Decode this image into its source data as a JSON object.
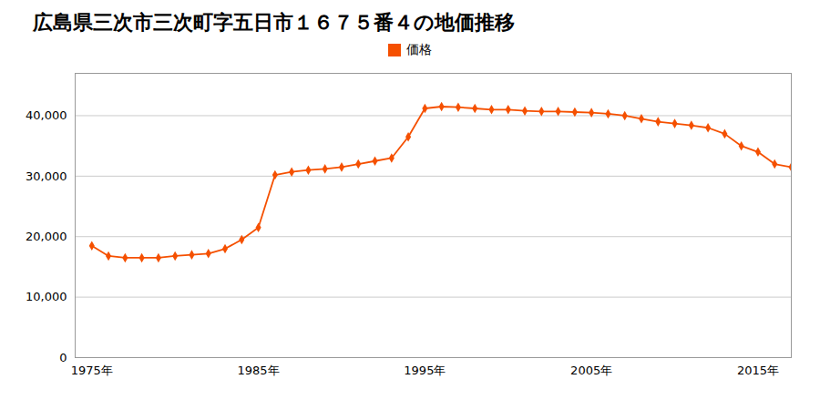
{
  "chart_data": {
    "type": "line",
    "title": "広島県三次市三次町字五日市１６７５番４の地価推移",
    "x": [
      1975,
      1976,
      1977,
      1978,
      1979,
      1980,
      1981,
      1982,
      1983,
      1984,
      1985,
      1986,
      1987,
      1988,
      1989,
      1990,
      1991,
      1992,
      1993,
      1994,
      1995,
      1996,
      1997,
      1998,
      1999,
      2000,
      2001,
      2002,
      2003,
      2004,
      2005,
      2006,
      2007,
      2008,
      2009,
      2010,
      2011,
      2012,
      2013,
      2014,
      2015,
      2016,
      2017
    ],
    "series": [
      {
        "name": "価格",
        "color": "#f55000",
        "marker": "diamond",
        "values": [
          18500,
          16800,
          16500,
          16500,
          16500,
          16800,
          17000,
          17200,
          18000,
          19500,
          21500,
          30200,
          30700,
          31000,
          31200,
          31500,
          32000,
          32500,
          33000,
          36500,
          41200,
          41500,
          41400,
          41200,
          41000,
          41000,
          40800,
          40700,
          40700,
          40600,
          40500,
          40300,
          40000,
          39500,
          39000,
          38700,
          38400,
          38000,
          37000,
          35000,
          34000,
          32000,
          31500
        ]
      }
    ],
    "xlim": [
      1974,
      2017
    ],
    "ylim": [
      0,
      47000
    ],
    "xticks": [
      {
        "value": 1975,
        "label": "1975年"
      },
      {
        "value": 1985,
        "label": "1985年"
      },
      {
        "value": 1995,
        "label": "1995年"
      },
      {
        "value": 2005,
        "label": "2005年"
      },
      {
        "value": 2015,
        "label": "2015年"
      }
    ],
    "yticks": [
      0,
      {
        "value": 10000,
        "label": "10,000"
      },
      {
        "value": 20000,
        "label": "20,000"
      },
      {
        "value": 30000,
        "label": "30,000"
      },
      {
        "value": 40000,
        "label": "40,000"
      }
    ],
    "grid": "y",
    "legend": "top"
  }
}
